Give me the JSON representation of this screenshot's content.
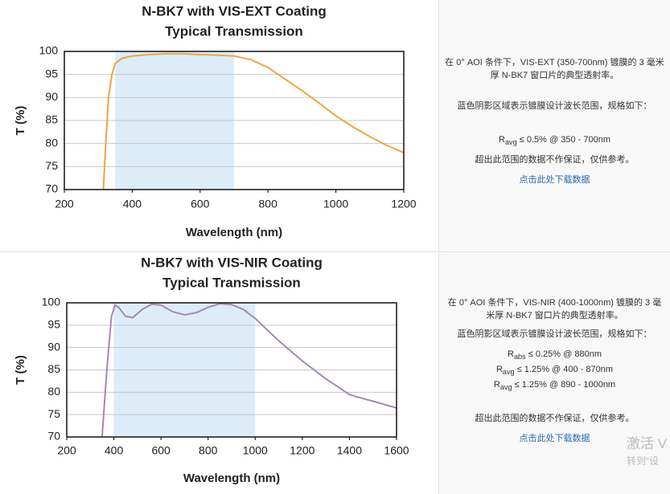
{
  "chart_data": [
    {
      "type": "line",
      "title": "N-BK7 with VIS-EXT Coating",
      "subtitle": "Typical Transmission",
      "xlabel": "Wavelength (nm)",
      "ylabel": "T (%)",
      "x": [
        315,
        322,
        330,
        340,
        350,
        370,
        400,
        450,
        500,
        550,
        600,
        650,
        700,
        750,
        800,
        850,
        900,
        950,
        1000,
        1050,
        1100,
        1150,
        1200
      ],
      "values": [
        70,
        80,
        90,
        95,
        97.4,
        98.5,
        99,
        99.3,
        99.5,
        99.5,
        99.3,
        99.2,
        99,
        98.2,
        96.5,
        94,
        91.5,
        88.8,
        86,
        83.6,
        81.5,
        79.6,
        78
      ],
      "color": "#f0a445",
      "shade": [
        350,
        700
      ],
      "shade_color": "#dcecf8",
      "xlim": [
        200,
        1200
      ],
      "xticks": [
        200,
        400,
        600,
        800,
        1000,
        1200
      ],
      "ylim": [
        70,
        100
      ],
      "yticks": [
        70,
        75,
        80,
        85,
        90,
        95,
        100
      ],
      "grid": true
    },
    {
      "type": "line",
      "title": "N-BK7 with VIS-NIR Coating",
      "subtitle": "Typical Transmission",
      "xlabel": "Wavelength (nm)",
      "ylabel": "T (%)",
      "x": [
        350,
        370,
        390,
        405,
        420,
        450,
        480,
        520,
        560,
        600,
        650,
        700,
        750,
        800,
        850,
        900,
        950,
        1000,
        1100,
        1200,
        1300,
        1400,
        1430,
        1500,
        1600
      ],
      "values": [
        70,
        85,
        97,
        99.5,
        99,
        97,
        96.7,
        98.5,
        99.7,
        99.5,
        98,
        97.3,
        97.8,
        99,
        99.8,
        99.6,
        98.5,
        96.5,
        91.5,
        87,
        83,
        79.5,
        79,
        78,
        76.5
      ],
      "color": "#a688b4",
      "shade": [
        400,
        1000
      ],
      "shade_color": "#dcecf8",
      "xlim": [
        200,
        1600
      ],
      "xticks": [
        200,
        400,
        600,
        800,
        1000,
        1200,
        1400,
        1600
      ],
      "ylim": [
        70,
        100
      ],
      "yticks": [
        70,
        75,
        80,
        85,
        90,
        95,
        100
      ],
      "grid": true
    }
  ],
  "notes": [
    {
      "intro": "在 0° AOI 条件下，VIS-EXT (350-700nm) 镀膜的 3 毫米厚 N-BK7 窗口片的典型透射率。",
      "shade_note": "蓝色阴影区域表示镀膜设计波长范围，规格如下：",
      "specs": [
        {
          "symbol": "R",
          "sub": "avg",
          "text": "≤ 0.5% @ 350 - 700nm"
        }
      ],
      "disclaimer": "超出此范围的数据不作保证，仅供参考。",
      "link": "点击此处下载数据"
    },
    {
      "intro": "在 0° AOI 条件下，VIS-NIR (400-1000nm) 镀膜的 3 毫米厚 N-BK7 窗口片的典型透射率。",
      "shade_note": "蓝色阴影区域表示镀膜设计波长范围，规格如下：",
      "specs": [
        {
          "symbol": "R",
          "sub": "abs",
          "text": "≤ 0.25% @ 880nm"
        },
        {
          "symbol": "R",
          "sub": "avg",
          "text": "≤ 1.25% @ 400 - 870nm"
        },
        {
          "symbol": "R",
          "sub": "avg",
          "text": "≤ 1.25% @ 890 - 1000nm"
        }
      ],
      "disclaimer": "超出此范围的数据不作保证，仅供参考。",
      "link": "点击此处下载数据"
    }
  ],
  "watermark": [
    "激活 V",
    "转到“设"
  ]
}
